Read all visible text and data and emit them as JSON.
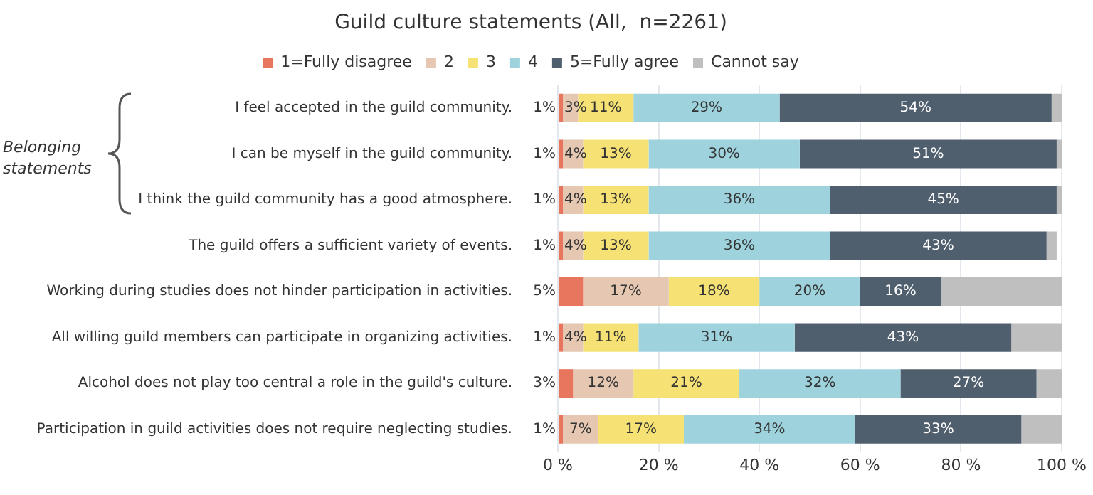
{
  "chart_data": {
    "type": "bar",
    "orientation": "horizontal",
    "stacked": true,
    "title": "Guild culture statements (All,  n=2261)",
    "categories": [
      "I feel accepted in the guild community.",
      "I can be myself in the guild community.",
      "I think the guild community has a good atmosphere.",
      "The guild offers a sufficient variety of events.",
      "Working during studies does not hinder participation in activities.",
      "All willing guild members can participate in organizing activities.",
      "Alcohol does not play too central a role in the guild's culture.",
      "Participation in guild activities does not require neglecting studies."
    ],
    "series": [
      {
        "name": "1=Fully disagree",
        "color": "#e8765f",
        "values": [
          1,
          1,
          1,
          1,
          5,
          1,
          3,
          1
        ],
        "value_labels": [
          "1%",
          "1%",
          "1%",
          "1%",
          "5%",
          "1%",
          "3%",
          "1%"
        ]
      },
      {
        "name": "2",
        "color": "#e6c8b2",
        "values": [
          3,
          4,
          4,
          4,
          17,
          4,
          12,
          7
        ],
        "value_labels": [
          "3%",
          "4%",
          "4%",
          "4%",
          "17%",
          "4%",
          "12%",
          "7%"
        ]
      },
      {
        "name": "3",
        "color": "#f6e274",
        "values": [
          11,
          13,
          13,
          13,
          18,
          11,
          21,
          17
        ],
        "value_labels": [
          "11%",
          "13%",
          "13%",
          "13%",
          "18%",
          "11%",
          "21%",
          "17%"
        ]
      },
      {
        "name": "4",
        "color": "#9ed3de",
        "values": [
          29,
          30,
          36,
          36,
          20,
          31,
          32,
          34
        ],
        "value_labels": [
          "29%",
          "30%",
          "36%",
          "36%",
          "20%",
          "31%",
          "32%",
          "34%"
        ]
      },
      {
        "name": "5=Fully agree",
        "color": "#505f6e",
        "values": [
          54,
          51,
          45,
          43,
          16,
          43,
          27,
          33
        ],
        "value_labels": [
          "54%",
          "51%",
          "45%",
          "43%",
          "16%",
          "43%",
          "27%",
          "33%"
        ]
      },
      {
        "name": "Cannot say",
        "color": "#bfbfbf",
        "values": [
          2,
          1,
          1,
          2,
          24,
          10,
          5,
          8
        ]
      }
    ],
    "xlim": [
      0,
      100
    ],
    "xticks": [
      {
        "value": 0,
        "label": "0 %"
      },
      {
        "value": 20,
        "label": "20 %"
      },
      {
        "value": 40,
        "label": "40 %"
      },
      {
        "value": 60,
        "label": "60 %"
      },
      {
        "value": 80,
        "label": "80 %"
      },
      {
        "value": 100,
        "label": "100 %"
      }
    ],
    "grid": "x",
    "legend": "top",
    "annotations": [
      "Belonging statements"
    ]
  }
}
